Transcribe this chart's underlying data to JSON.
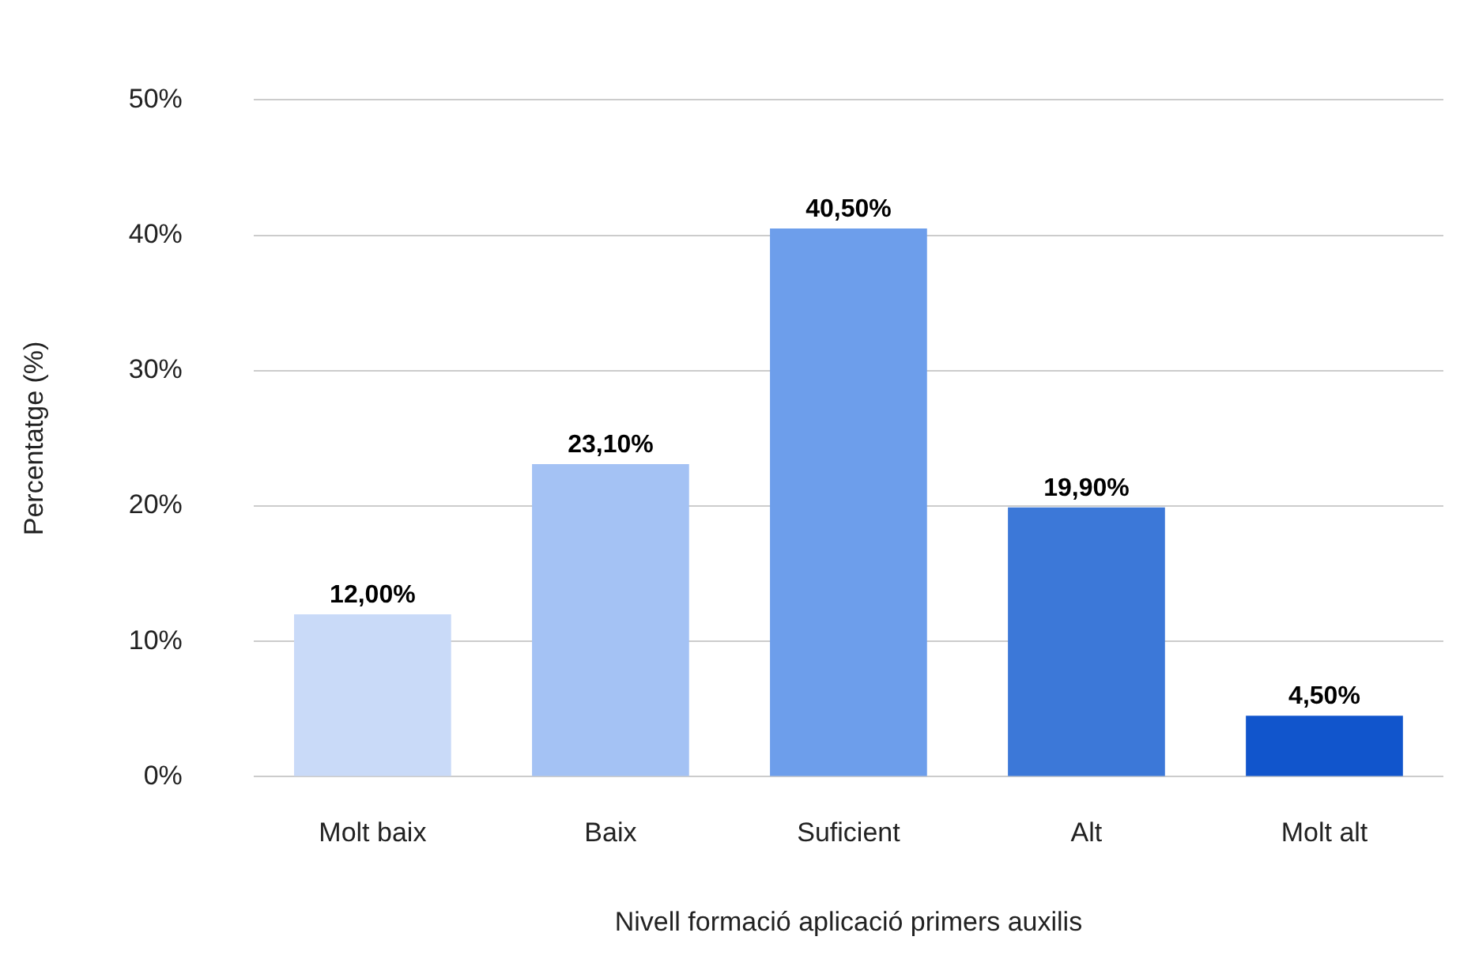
{
  "chart_data": {
    "type": "bar",
    "xlabel": "Nivell formació aplicació primers auxilis",
    "ylabel": "Percentatge (%)",
    "categories": [
      "Molt baix",
      "Baix",
      "Suficient",
      "Alt",
      "Molt alt"
    ],
    "values": [
      12,
      23.1,
      40.5,
      19.9,
      4.5
    ],
    "colors": [
      "#c9daf8",
      "#a4c2f4",
      "#6d9eeb",
      "#3c78d8",
      "#1155cc"
    ],
    "value_labels": [
      "12,00%",
      "23,10%",
      "40,50%",
      "19,90%",
      "4,50%"
    ],
    "ylim": [
      0,
      50
    ],
    "yticks": [
      {
        "value": 0,
        "label": "0%"
      },
      {
        "value": 10,
        "label": "10%"
      },
      {
        "value": 20,
        "label": "20%"
      },
      {
        "value": 30,
        "label": "30%"
      },
      {
        "value": 40,
        "label": "40%"
      },
      {
        "value": 50,
        "label": "50%"
      }
    ],
    "grid": "y",
    "legend": false
  }
}
